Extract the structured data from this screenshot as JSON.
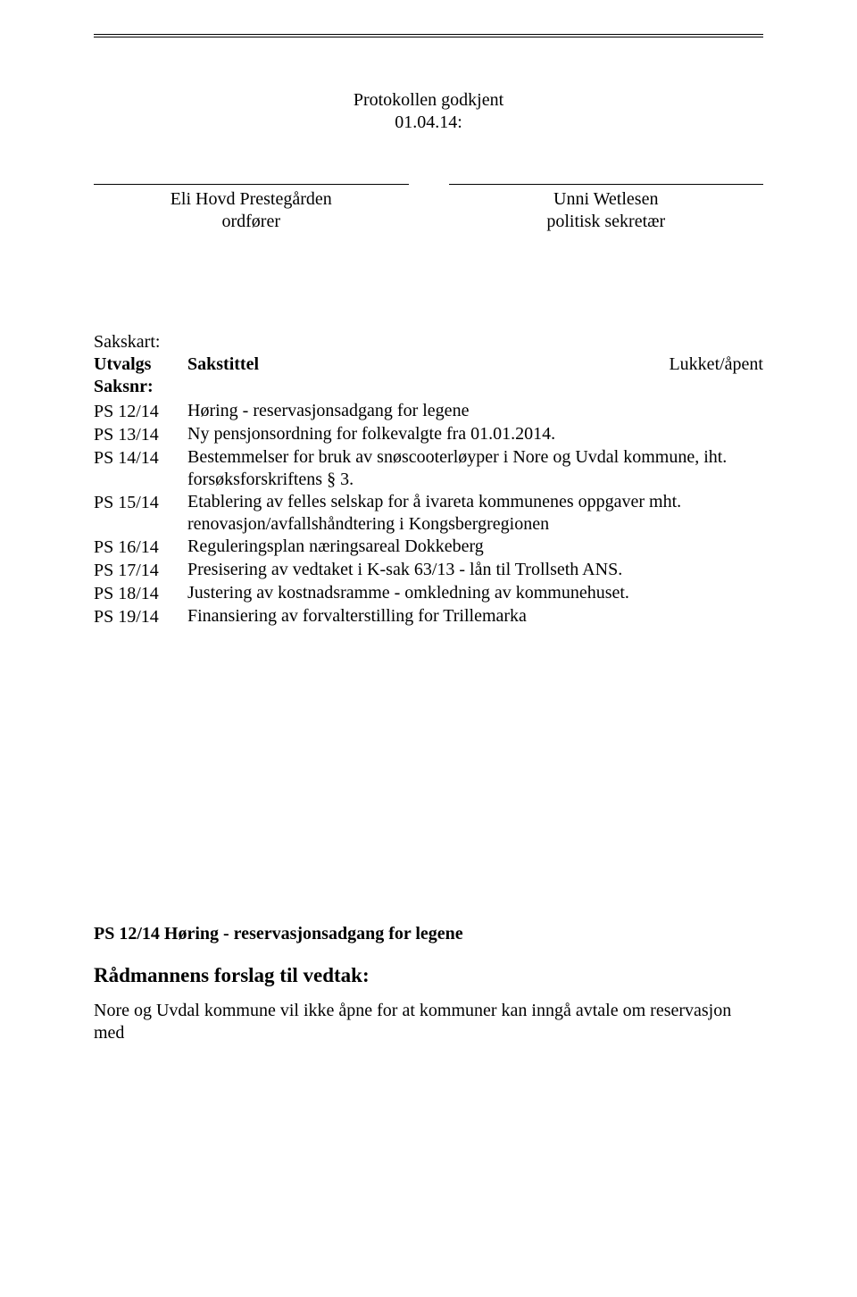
{
  "rule_color": "#000000",
  "background_color": "#ffffff",
  "text_color": "#000000",
  "approval": {
    "line1": "Protokollen godkjent",
    "line2": "01.04.14:"
  },
  "signatures": {
    "left": {
      "name": "Eli Hovd Prestegården",
      "role": "ordfører"
    },
    "right": {
      "name": "Unni Wetlesen",
      "role": "politisk sekretær"
    }
  },
  "agenda_header": {
    "label": "Sakskart:",
    "col_ref_line1": "Utvalgs",
    "col_ref_line2": "Saksnr:",
    "col_title": "Sakstittel",
    "col_status": "Lukket/åpent"
  },
  "agenda_items": [
    {
      "ref": "PS 12/14",
      "title": "Høring - reservasjonsadgang for legene"
    },
    {
      "ref": "PS 13/14",
      "title": "Ny pensjonsordning for folkevalgte fra 01.01.2014."
    },
    {
      "ref": "PS 14/14",
      "title": "Bestemmelser for bruk av snøscooterløyper i Nore og Uvdal kommune, iht. forsøksforskriftens § 3."
    },
    {
      "ref": "PS 15/14",
      "title": "Etablering av felles selskap for å ivareta kommunenes oppgaver mht. renovasjon/avfallshåndtering i Kongsbergregionen"
    },
    {
      "ref": "PS 16/14",
      "title": "Reguleringsplan næringsareal Dokkeberg"
    },
    {
      "ref": "PS 17/14",
      "title": "Presisering av vedtaket i K-sak 63/13 - lån til Trollseth ANS."
    },
    {
      "ref": "PS 18/14",
      "title": "Justering av kostnadsramme  - omkledning av kommunehuset."
    },
    {
      "ref": "PS 19/14",
      "title": "Finansiering av forvalterstilling for Trillemarka"
    }
  ],
  "section": {
    "heading": "PS 12/14 Høring - reservasjonsadgang for legene",
    "subheading": "Rådmannens forslag til vedtak:",
    "body": "Nore og Uvdal kommune vil ikke åpne for at kommuner kan inngå avtale om reservasjon med"
  }
}
